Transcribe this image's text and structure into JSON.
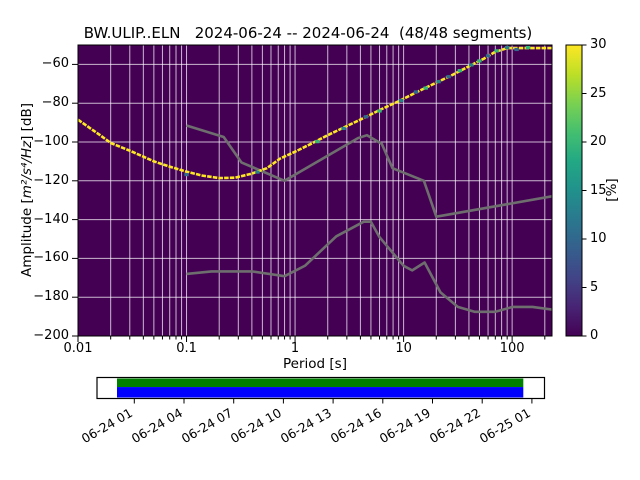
{
  "title": "BW.ULIP..ELN   2024-06-24 -- 2024-06-24  (48/48 segments)",
  "axes": {
    "xlabel": "Period [s]",
    "ylabel_prefix": "Amplitude [",
    "ylabel_math": "m²/s⁴/Hz",
    "ylabel_suffix": "] [dB]",
    "xscale": "log",
    "xlim": [
      0.01,
      233
    ],
    "ylim": [
      -200,
      -50
    ],
    "x_ticks": [
      {
        "label": "0.01",
        "value": 0.01
      },
      {
        "label": "0.1",
        "value": 0.1
      },
      {
        "label": "1",
        "value": 1
      },
      {
        "label": "10",
        "value": 10
      },
      {
        "label": "100",
        "value": 100
      }
    ],
    "y_ticks": [
      {
        "label": "−60",
        "value": -60
      },
      {
        "label": "−80",
        "value": -80
      },
      {
        "label": "−100",
        "value": -100
      },
      {
        "label": "−120",
        "value": -120
      },
      {
        "label": "−140",
        "value": -140
      },
      {
        "label": "−160",
        "value": -160
      },
      {
        "label": "−180",
        "value": -180
      },
      {
        "label": "−200",
        "value": -200
      }
    ]
  },
  "colorbar": {
    "label": "[%]",
    "min": 0,
    "max": 30,
    "colormap": "viridis",
    "ticks": [
      {
        "label": "0",
        "value": 0
      },
      {
        "label": "5",
        "value": 5
      },
      {
        "label": "10",
        "value": 10
      },
      {
        "label": "15",
        "value": 15
      },
      {
        "label": "20",
        "value": 20
      },
      {
        "label": "25",
        "value": 25
      },
      {
        "label": "30",
        "value": 30
      }
    ]
  },
  "coverage": {
    "tick_labels": [
      "06-24 01",
      "06-24 04",
      "06-24 07",
      "06-24 10",
      "06-24 13",
      "06-24 16",
      "06-24 19",
      "06-24 22",
      "06-25 01"
    ],
    "full_color": "#008000",
    "segment_color": "#0000ff"
  },
  "colors": {
    "figure_bg": "#ffffff",
    "plot_bg": "#440154",
    "grid": "rgba(255,255,255,0.72)",
    "psd_line": "#fde725",
    "noise_model": "#6e6e6e",
    "spine": "#000000",
    "viridis_stops": [
      "#440154",
      "#482475",
      "#414487",
      "#355f8d",
      "#2a788e",
      "#21918c",
      "#22a884",
      "#44bf70",
      "#7ad151",
      "#bddf26",
      "#fde725"
    ]
  },
  "chart_data": {
    "type": "heatmap",
    "subtype": "ppsd-probability-histogram",
    "title": "BW.ULIP..ELN   2024-06-24 -- 2024-06-24  (48/48 segments)",
    "xlabel": "Period [s]",
    "ylabel": "Amplitude [m²/s⁴/Hz] [dB]",
    "xscale": "log",
    "xlim": [
      0.01,
      233
    ],
    "ylim": [
      -200,
      -50
    ],
    "grid": true,
    "colorbar": {
      "label": "[%]",
      "range": [
        0,
        30
      ],
      "colormap": "viridis"
    },
    "series": [
      {
        "name": "psd-histogram-mode",
        "color": "#fde725",
        "points": [
          [
            0.01,
            -88.5
          ],
          [
            0.013,
            -93
          ],
          [
            0.016,
            -96.5
          ],
          [
            0.02,
            -100.5
          ],
          [
            0.03,
            -104.5
          ],
          [
            0.04,
            -107.5
          ],
          [
            0.05,
            -110
          ],
          [
            0.07,
            -112.7
          ],
          [
            0.1,
            -115.3
          ],
          [
            0.14,
            -117.3
          ],
          [
            0.2,
            -118.6
          ],
          [
            0.28,
            -118.4
          ],
          [
            0.4,
            -116.3
          ],
          [
            0.55,
            -113.5
          ],
          [
            0.73,
            -108.5
          ],
          [
            1.0,
            -105
          ],
          [
            1.4,
            -101
          ],
          [
            2.0,
            -96.5
          ],
          [
            3.0,
            -91.8
          ],
          [
            4.4,
            -87.3
          ],
          [
            6.3,
            -83
          ],
          [
            9.0,
            -79
          ],
          [
            13.0,
            -74.5
          ],
          [
            19.0,
            -70
          ],
          [
            28.0,
            -65.5
          ],
          [
            40.0,
            -61
          ],
          [
            55.0,
            -57
          ],
          [
            70.0,
            -53.5
          ],
          [
            90.0,
            -51.6
          ],
          [
            233.0,
            -51.6
          ]
        ]
      },
      {
        "name": "peterson-nhnm",
        "color": "#6e6e6e",
        "points": [
          [
            0.1,
            -91.5
          ],
          [
            0.22,
            -97.4
          ],
          [
            0.32,
            -110.5
          ],
          [
            0.8,
            -120.0
          ],
          [
            3.8,
            -98.0
          ],
          [
            4.6,
            -96.5
          ],
          [
            6.3,
            -101.0
          ],
          [
            7.9,
            -113.5
          ],
          [
            15.4,
            -120.0
          ],
          [
            20.0,
            -138.5
          ],
          [
            233.0,
            -128.0
          ]
        ]
      },
      {
        "name": "peterson-nlnm",
        "color": "#6e6e6e",
        "points": [
          [
            0.1,
            -168.0
          ],
          [
            0.17,
            -166.7
          ],
          [
            0.4,
            -166.7
          ],
          [
            0.8,
            -169.2
          ],
          [
            1.24,
            -163.7
          ],
          [
            2.4,
            -148.6
          ],
          [
            4.3,
            -141.1
          ],
          [
            5.0,
            -141.1
          ],
          [
            6.0,
            -149.0
          ],
          [
            10.0,
            -163.8
          ],
          [
            12.0,
            -166.2
          ],
          [
            15.6,
            -162.1
          ],
          [
            21.9,
            -177.5
          ],
          [
            31.6,
            -185.0
          ],
          [
            45.0,
            -187.5
          ],
          [
            70.0,
            -187.5
          ],
          [
            101.0,
            -185.0
          ],
          [
            154.0,
            -185.0
          ],
          [
            233.0,
            -186.4
          ]
        ]
      }
    ],
    "speckles": [
      {
        "p": 0.1,
        "db": -116.8,
        "c": "#31688e"
      },
      {
        "p": 0.45,
        "db": -115.5,
        "c": "#26828e"
      },
      {
        "p": 1.6,
        "db": -99.8,
        "c": "#35b779"
      },
      {
        "p": 2.8,
        "db": -93.0,
        "c": "#26828e"
      },
      {
        "p": 4.5,
        "db": -87.0,
        "c": "#31688e"
      },
      {
        "p": 6.0,
        "db": -84.0,
        "c": "#35b779"
      },
      {
        "p": 9.5,
        "db": -78.6,
        "c": "#26828e"
      },
      {
        "p": 13,
        "db": -74.2,
        "c": "#31688e"
      },
      {
        "p": 16,
        "db": -72.2,
        "c": "#35b779"
      },
      {
        "p": 21,
        "db": -68.9,
        "c": "#26828e"
      },
      {
        "p": 26,
        "db": -66.3,
        "c": "#31688e"
      },
      {
        "p": 33,
        "db": -63.2,
        "c": "#35b779"
      },
      {
        "p": 42,
        "db": -60.3,
        "c": "#26828e"
      },
      {
        "p": 50,
        "db": -58.2,
        "c": "#35b779"
      },
      {
        "p": 60,
        "db": -55.6,
        "c": "#31688e"
      },
      {
        "p": 72,
        "db": -53.0,
        "c": "#35b779"
      },
      {
        "p": 90,
        "db": -51.3,
        "c": "#26828e"
      },
      {
        "p": 110,
        "db": -52.3,
        "c": "#31688e"
      },
      {
        "p": 140,
        "db": -51.3,
        "c": "#35b779"
      }
    ]
  }
}
